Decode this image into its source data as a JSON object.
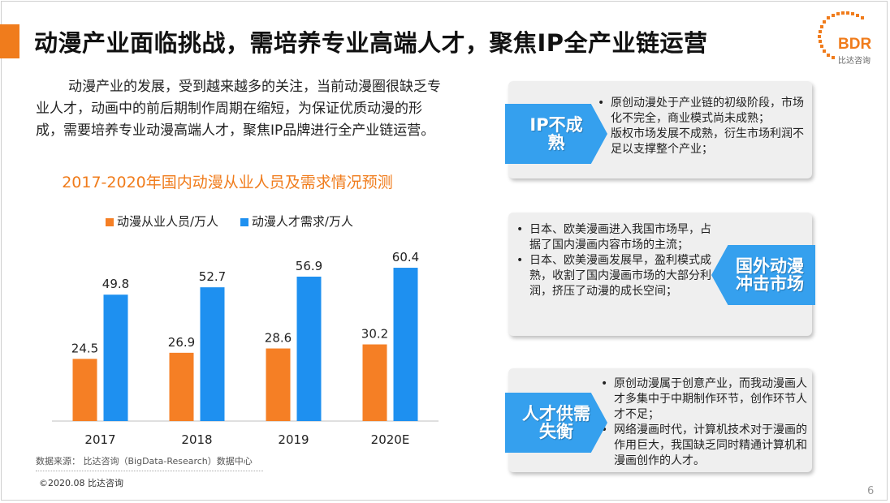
{
  "page": {
    "title": "动漫产业面临挑战，需培养专业高端人才，聚焦IP全产业链运营",
    "logo_text": "BDR",
    "logo_sub": "比达咨询",
    "page_number": "6",
    "intro": "动漫产业的发展，受到越来越多的关注，当前动漫圈很缺乏专业人才，动画中的前后期制作周期在缩短，为保证优质动漫的形成，需要培养专业动漫高端人才，聚焦IP品牌进行全产业链运营。",
    "source": "数据来源： 比达咨询（BigData-Research）数据中心",
    "copyright": "©2020.08   比达咨询"
  },
  "chart_data": {
    "type": "bar",
    "title": "2017-2020年国内动漫从业人员及需求情况预测",
    "categories": [
      "2017",
      "2018",
      "2019",
      "2020E"
    ],
    "series": [
      {
        "name": "动漫从业人员/万人",
        "values": [
          24.5,
          26.9,
          28.6,
          30.2
        ],
        "color": "#f57f25"
      },
      {
        "name": "动漫人才需求/万人",
        "values": [
          49.8,
          52.7,
          56.9,
          60.4
        ],
        "color": "#1e90f0"
      }
    ],
    "ylim": [
      0,
      70
    ],
    "grid": false,
    "legend": "top"
  },
  "panels": [
    {
      "tag": "IP不成熟",
      "items": [
        "原创动漫处于产业链的初级阶段，市场化不完全，商业模式尚未成熟；",
        "版权市场发展不成熟，衍生市场利润不足以支撑整个产业；"
      ]
    },
    {
      "tag": "国外动漫冲击市场",
      "items": [
        "日本、欧美漫画进入我国市场早，占据了国内漫画内容市场的主流；",
        "日本、欧美漫画发展早，盈利模式成熟，收割了国内漫画市场的大部分利润，挤压了动漫的成长空间；"
      ]
    },
    {
      "tag": "人才供需失衡",
      "items": [
        "原创动漫属于创意产业，而我动漫画人才多集中于中期制作环节，创作环节人才不足；",
        "网络漫画时代，计算机技术对于漫画的作用巨大，我国缺乏同时精通计算机和漫画创作的人才。"
      ]
    }
  ]
}
